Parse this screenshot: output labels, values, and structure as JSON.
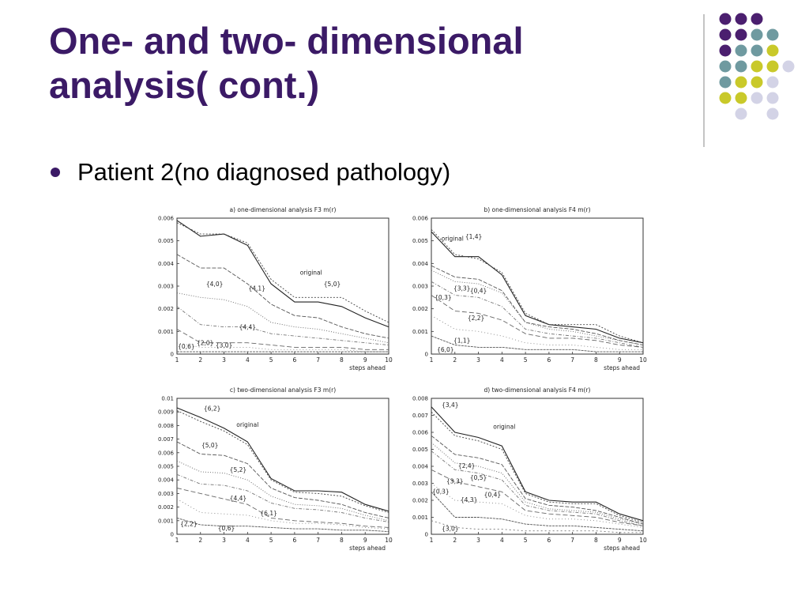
{
  "slide": {
    "title_line1": "One- and two- dimensional",
    "title_line2": "analysis( cont.)",
    "bullet": "Patient 2(no diagnosed pathology)",
    "colors": {
      "title": "#3b1a66",
      "dot_purple": "#4b1f6f",
      "dot_teal": "#6f9aa0",
      "dot_yellow": "#c9c92a",
      "dot_lavender": "#d3d3e6"
    }
  },
  "chart_data": [
    {
      "type": "line",
      "title": "a) one-dimensional analysis F3 m(r)",
      "xlabel": "steps ahead",
      "ylabel": "",
      "x": [
        1,
        2,
        3,
        4,
        5,
        6,
        7,
        8,
        9,
        10
      ],
      "xlim": [
        1,
        10
      ],
      "ylim": [
        0,
        0.006
      ],
      "yticks": [
        "0",
        "0.001",
        "0.002",
        "0.003",
        "0.004",
        "0.005",
        "0.006"
      ],
      "series": [
        {
          "name": "original",
          "values": [
            0.0059,
            0.0052,
            0.0053,
            0.0048,
            0.0031,
            0.0023,
            0.0023,
            0.0021,
            0.0016,
            0.0012
          ]
        },
        {
          "name": "{5,0}",
          "values": [
            0.0058,
            0.0053,
            0.0053,
            0.0049,
            0.0033,
            0.0025,
            0.0025,
            0.0025,
            0.0019,
            0.0014
          ]
        },
        {
          "name": "{4,0}",
          "values": [
            0.0044,
            0.0038,
            0.0038,
            0.0031,
            0.0022,
            0.0017,
            0.0016,
            0.0012,
            0.0009,
            0.0007
          ]
        },
        {
          "name": "{4,1}",
          "values": [
            0.0027,
            0.0025,
            0.0024,
            0.0021,
            0.0014,
            0.0012,
            0.0011,
            0.0009,
            0.0007,
            0.0005
          ]
        },
        {
          "name": "{4,4}",
          "values": [
            0.0021,
            0.0013,
            0.0012,
            0.0012,
            0.0009,
            0.0008,
            0.0007,
            0.0006,
            0.0005,
            0.0004
          ]
        },
        {
          "name": "{2,0}",
          "values": [
            0.0011,
            0.0005,
            0.0005,
            0.0005,
            0.0004,
            0.0003,
            0.0003,
            0.0003,
            0.0002,
            0.0002
          ]
        },
        {
          "name": "{3,0}",
          "values": [
            0.0005,
            0.0003,
            0.0003,
            0.0003,
            0.0002,
            0.0002,
            0.0002,
            0.0002,
            0.0001,
            0.0001
          ]
        },
        {
          "name": "{0,6}",
          "values": [
            0.0001,
            0.0001,
            0.0001,
            0.0001,
            0.0001,
            0.0001,
            0.0001,
            0.0001,
            0.0001,
            0.0001
          ]
        }
      ],
      "annotations": [
        {
          "text": "original",
          "x": 6.7,
          "y": 0.0035
        },
        {
          "text": "{5,0}",
          "x": 7.6,
          "y": 0.003
        },
        {
          "text": "{4,0}",
          "x": 2.6,
          "y": 0.003
        },
        {
          "text": "{4,1}",
          "x": 4.4,
          "y": 0.0028
        },
        {
          "text": "{4,4}",
          "x": 4.0,
          "y": 0.0011
        },
        {
          "text": "{0,6}",
          "x": 1.4,
          "y": 0.00025
        },
        {
          "text": "{2,0}",
          "x": 2.2,
          "y": 0.0004
        },
        {
          "text": "{3,0}",
          "x": 3.0,
          "y": 0.0003
        }
      ]
    },
    {
      "type": "line",
      "title": "b) one-dimensional analysis F4 m(r)",
      "xlabel": "steps ahead",
      "ylabel": "",
      "x": [
        1,
        2,
        3,
        4,
        5,
        6,
        7,
        8,
        9,
        10
      ],
      "xlim": [
        1,
        10
      ],
      "ylim": [
        0,
        0.006
      ],
      "yticks": [
        "0",
        "0.001",
        "0.002",
        "0.003",
        "0.004",
        "0.005",
        "0.006"
      ],
      "series": [
        {
          "name": "original",
          "values": [
            0.0054,
            0.0043,
            0.0043,
            0.0035,
            0.0017,
            0.0013,
            0.0012,
            0.0011,
            0.0007,
            0.0005
          ]
        },
        {
          "name": "{1,4}",
          "values": [
            0.0055,
            0.0044,
            0.0042,
            0.0036,
            0.0018,
            0.0013,
            0.0013,
            0.0013,
            0.0008,
            0.0005
          ]
        },
        {
          "name": "{3,3}",
          "values": [
            0.0039,
            0.0034,
            0.0033,
            0.0028,
            0.0014,
            0.0012,
            0.0011,
            0.0009,
            0.0006,
            0.0004
          ]
        },
        {
          "name": "{0,4}",
          "values": [
            0.0037,
            0.0032,
            0.0031,
            0.0027,
            0.0014,
            0.0011,
            0.001,
            0.0008,
            0.0006,
            0.0004
          ]
        },
        {
          "name": "{0,3}",
          "values": [
            0.0032,
            0.0026,
            0.0025,
            0.0021,
            0.0011,
            0.0009,
            0.0008,
            0.0007,
            0.0005,
            0.0003
          ]
        },
        {
          "name": "{2,2}",
          "values": [
            0.0026,
            0.0019,
            0.0018,
            0.0015,
            0.0009,
            0.0007,
            0.0007,
            0.0006,
            0.0004,
            0.0003
          ]
        },
        {
          "name": "{1,1}",
          "values": [
            0.0017,
            0.0011,
            0.001,
            0.0008,
            0.0005,
            0.0004,
            0.0004,
            0.0003,
            0.0002,
            0.0002
          ]
        },
        {
          "name": "{6,0}",
          "values": [
            0.0008,
            0.0004,
            0.0003,
            0.0003,
            0.0002,
            0.0002,
            0.0002,
            0.0001,
            0.0001,
            0.0001
          ]
        }
      ],
      "annotations": [
        {
          "text": "original",
          "x": 1.9,
          "y": 0.005
        },
        {
          "text": "{1,4}",
          "x": 2.8,
          "y": 0.0051
        },
        {
          "text": "{3,3}",
          "x": 2.3,
          "y": 0.0028
        },
        {
          "text": "{0,4}",
          "x": 3.0,
          "y": 0.0027
        },
        {
          "text": "{0,3}",
          "x": 1.5,
          "y": 0.0024
        },
        {
          "text": "{2,2}",
          "x": 2.9,
          "y": 0.0015
        },
        {
          "text": "{1,1}",
          "x": 2.3,
          "y": 0.0005
        },
        {
          "text": "{6,0}",
          "x": 1.6,
          "y": 0.0001
        }
      ]
    },
    {
      "type": "line",
      "title": "c) two-dimensional analysis F3 m(r)",
      "xlabel": "steps ahead",
      "ylabel": "",
      "x": [
        1,
        2,
        3,
        4,
        5,
        6,
        7,
        8,
        9,
        10
      ],
      "xlim": [
        1,
        10
      ],
      "ylim": [
        0,
        0.01
      ],
      "yticks": [
        "0",
        "0.001",
        "0.002",
        "0.003",
        "0.004",
        "0.005",
        "0.006",
        "0.007",
        "0.008",
        "0.009",
        "0.01"
      ],
      "series": [
        {
          "name": "original",
          "values": [
            0.0093,
            0.0086,
            0.0078,
            0.0068,
            0.0041,
            0.0032,
            0.0032,
            0.0031,
            0.0022,
            0.0017
          ]
        },
        {
          "name": "{6,2}",
          "values": [
            0.0091,
            0.0083,
            0.0076,
            0.0066,
            0.004,
            0.0031,
            0.003,
            0.0028,
            0.0021,
            0.0016
          ]
        },
        {
          "name": "{5,0}",
          "values": [
            0.0068,
            0.0059,
            0.0058,
            0.0052,
            0.0034,
            0.0027,
            0.0025,
            0.0022,
            0.0016,
            0.0012
          ]
        },
        {
          "name": "{5,2}",
          "values": [
            0.0054,
            0.0046,
            0.0045,
            0.004,
            0.0028,
            0.0022,
            0.0021,
            0.0019,
            0.0014,
            0.001
          ]
        },
        {
          "name": "{4,4}",
          "values": [
            0.0044,
            0.0037,
            0.0036,
            0.0032,
            0.0023,
            0.0019,
            0.0018,
            0.0016,
            0.0012,
            0.0009
          ]
        },
        {
          "name": "{6,1}",
          "values": [
            0.0034,
            0.003,
            0.0026,
            0.0022,
            0.0012,
            0.001,
            0.0009,
            0.0008,
            0.0006,
            0.0005
          ]
        },
        {
          "name": "{2,2}",
          "values": [
            0.0026,
            0.0016,
            0.0015,
            0.0014,
            0.001,
            0.0008,
            0.0008,
            0.0007,
            0.0005,
            0.0004
          ]
        },
        {
          "name": "{0,6}",
          "values": [
            0.0012,
            0.0007,
            0.0006,
            0.0006,
            0.0005,
            0.0004,
            0.0004,
            0.0003,
            0.0003,
            0.0002
          ]
        }
      ],
      "annotations": [
        {
          "text": "{6,2}",
          "x": 2.5,
          "y": 0.0091
        },
        {
          "text": "original",
          "x": 4.0,
          "y": 0.0079
        },
        {
          "text": "{5,0}",
          "x": 2.4,
          "y": 0.0064
        },
        {
          "text": "{5,2}",
          "x": 3.6,
          "y": 0.0046
        },
        {
          "text": "{4,4}",
          "x": 3.6,
          "y": 0.0025
        },
        {
          "text": "{6,1}",
          "x": 4.9,
          "y": 0.0014
        },
        {
          "text": "{2,2}",
          "x": 1.5,
          "y": 0.0006
        },
        {
          "text": "{0,6}",
          "x": 3.1,
          "y": 0.0003
        }
      ]
    },
    {
      "type": "line",
      "title": "d) two-dimensional analysis F4 m(r)",
      "xlabel": "steps ahead",
      "ylabel": "",
      "x": [
        1,
        2,
        3,
        4,
        5,
        6,
        7,
        8,
        9,
        10
      ],
      "xlim": [
        1,
        10
      ],
      "ylim": [
        0,
        0.008
      ],
      "yticks": [
        "0",
        "0.001",
        "0.002",
        "0.003",
        "0.004",
        "0.005",
        "0.006",
        "0.007",
        "0.008"
      ],
      "series": [
        {
          "name": "original",
          "values": [
            0.0075,
            0.006,
            0.0057,
            0.0052,
            0.0025,
            0.002,
            0.0019,
            0.0019,
            0.0012,
            0.0008
          ]
        },
        {
          "name": "{3,4}",
          "values": [
            0.0072,
            0.0058,
            0.0055,
            0.005,
            0.0024,
            0.0019,
            0.0018,
            0.0018,
            0.0011,
            0.0007
          ]
        },
        {
          "name": "{2,4}",
          "values": [
            0.0058,
            0.0047,
            0.0045,
            0.0041,
            0.0021,
            0.0017,
            0.0016,
            0.0014,
            0.001,
            0.0006
          ]
        },
        {
          "name": "{0,5}",
          "values": [
            0.0054,
            0.0042,
            0.004,
            0.0036,
            0.0019,
            0.0015,
            0.0014,
            0.0013,
            0.0009,
            0.0006
          ]
        },
        {
          "name": "{0,4}",
          "values": [
            0.0049,
            0.0038,
            0.0036,
            0.0032,
            0.0017,
            0.0014,
            0.0013,
            0.0012,
            0.0008,
            0.0005
          ]
        },
        {
          "name": "{3,3}",
          "values": [
            0.0038,
            0.0031,
            0.0028,
            0.0025,
            0.0014,
            0.0012,
            0.0011,
            0.001,
            0.0007,
            0.0005
          ]
        },
        {
          "name": "{4,3}",
          "values": [
            0.003,
            0.002,
            0.0019,
            0.0018,
            0.0011,
            0.0009,
            0.0009,
            0.0008,
            0.0006,
            0.0004
          ]
        },
        {
          "name": "{0,3}",
          "values": [
            0.0025,
            0.001,
            0.001,
            0.0009,
            0.0006,
            0.0005,
            0.0005,
            0.0004,
            0.0003,
            0.0002
          ]
        },
        {
          "name": "{3,0}",
          "values": [
            0.0008,
            0.0004,
            0.0003,
            0.0003,
            0.0002,
            0.0002,
            0.0002,
            0.0002,
            0.0001,
            0.0001
          ]
        }
      ],
      "annotations": [
        {
          "text": "{3,4}",
          "x": 1.8,
          "y": 0.0075
        },
        {
          "text": "original",
          "x": 4.1,
          "y": 0.0062
        },
        {
          "text": "{2,4}",
          "x": 2.5,
          "y": 0.0039
        },
        {
          "text": "{0,5}",
          "x": 3.0,
          "y": 0.0032
        },
        {
          "text": "{3,3}",
          "x": 2.0,
          "y": 0.003
        },
        {
          "text": "{0,4}",
          "x": 3.6,
          "y": 0.0022
        },
        {
          "text": "{0,3}",
          "x": 1.4,
          "y": 0.0024
        },
        {
          "text": "{4,3}",
          "x": 2.6,
          "y": 0.0019
        },
        {
          "text": "{3,0}",
          "x": 1.8,
          "y": 0.0002
        }
      ]
    }
  ]
}
